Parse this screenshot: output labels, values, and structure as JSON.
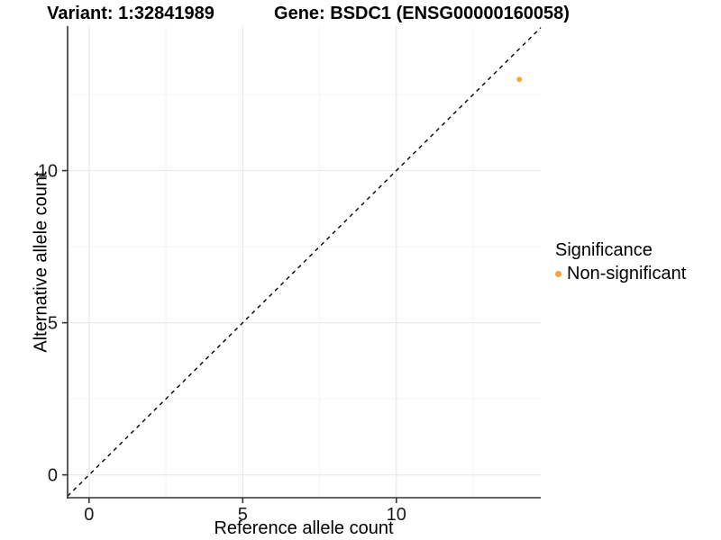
{
  "chart_data": {
    "type": "scatter",
    "title_left": "Variant: 1:32841989",
    "title_right": "Gene: BSDC1 (ENSG00000160058)",
    "xlabel": "Reference allele count",
    "ylabel": "Alternative allele count",
    "xlim": [
      -0.7,
      14.7
    ],
    "ylim": [
      -0.75,
      14.75
    ],
    "x_ticks": [
      0,
      5,
      10
    ],
    "y_ticks": [
      0,
      5,
      10
    ],
    "x_minor_gridlines": [
      2.5,
      7.5,
      12.5
    ],
    "y_minor_gridlines": [
      2.5,
      7.5,
      12.5
    ],
    "grid": true,
    "reference_line": {
      "kind": "diagonal-y-equals-x",
      "style": "dashed",
      "color": "#000000"
    },
    "series": [
      {
        "name": "Non-significant",
        "color": "#FBA33C",
        "points": [
          {
            "x": 14,
            "y": 13
          }
        ]
      }
    ],
    "legend": {
      "title": "Significance",
      "position": "right",
      "entries": [
        {
          "label": "Non-significant",
          "color": "#FBA33C"
        }
      ]
    }
  },
  "style_colors": {
    "axis_line": "#333333",
    "tick_text": "#1a1a1a",
    "grid_major": "#e9e9e9",
    "grid_minor": "#f4f4f4",
    "background": "#ffffff"
  }
}
